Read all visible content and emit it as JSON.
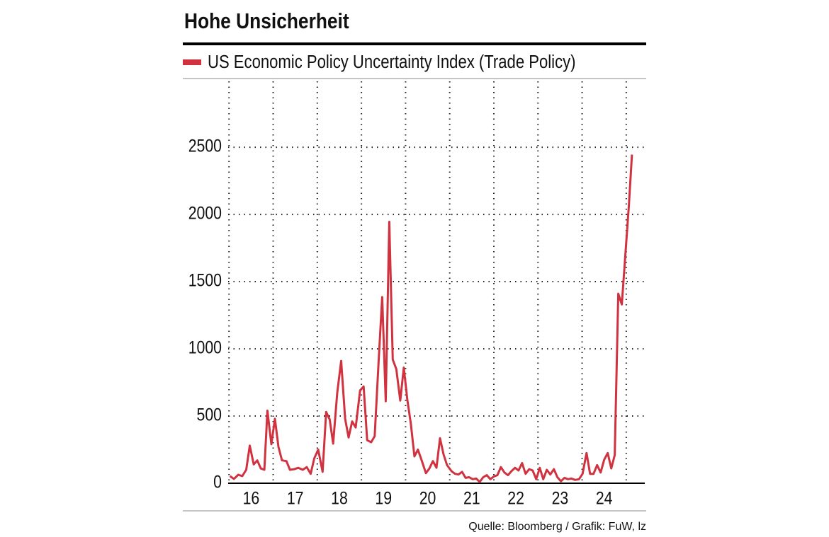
{
  "chart_data": {
    "type": "line",
    "title": "Hohe Unsicherheit",
    "source": "Quelle: Bloomberg / Grafik: FuW, lz",
    "x": [
      16.02,
      16.11,
      16.21,
      16.3,
      16.39,
      16.47,
      16.56,
      16.64,
      16.72,
      16.8,
      16.87,
      16.96,
      17.04,
      17.12,
      17.2,
      17.3,
      17.38,
      17.48,
      17.57,
      17.67,
      17.76,
      17.85,
      17.93,
      18.02,
      18.12,
      18.2,
      18.28,
      18.36,
      18.45,
      18.54,
      18.63,
      18.71,
      18.79,
      18.87,
      18.97,
      19.05,
      19.13,
      19.22,
      19.3,
      19.39,
      19.47,
      19.55,
      19.63,
      19.71,
      19.79,
      19.88,
      19.96,
      20.04,
      20.12,
      20.2,
      20.28,
      20.36,
      20.46,
      20.54,
      20.62,
      20.7,
      20.78,
      20.86,
      20.94,
      21.04,
      21.12,
      21.2,
      21.28,
      21.36,
      21.44,
      21.52,
      21.6,
      21.68,
      21.76,
      21.84,
      21.92,
      22.0,
      22.08,
      22.16,
      22.24,
      22.32,
      22.4,
      22.48,
      22.56,
      22.64,
      22.72,
      22.8,
      22.88,
      22.96,
      23.04,
      23.12,
      23.2,
      23.28,
      23.36,
      23.44,
      23.52,
      23.6,
      23.68,
      23.76,
      23.84,
      23.93,
      24.01,
      24.1,
      24.18,
      24.26,
      24.34,
      24.42,
      24.5,
      24.58,
      24.66,
      24.74,
      24.82,
      24.9,
      24.98,
      25.06,
      25.13
    ],
    "series": [
      {
        "name": "US Economic Policy Uncertainty Index (Trade Policy)",
        "color": "#d1323f",
        "values": [
          53,
          32,
          63,
          53,
          100,
          280,
          140,
          170,
          110,
          100,
          540,
          290,
          480,
          270,
          170,
          165,
          100,
          105,
          115,
          100,
          120,
          70,
          185,
          250,
          85,
          530,
          475,
          295,
          670,
          910,
          480,
          340,
          460,
          415,
          690,
          720,
          320,
          305,
          350,
          910,
          1385,
          610,
          1945,
          920,
          850,
          615,
          860,
          620,
          440,
          200,
          250,
          175,
          75,
          110,
          165,
          115,
          335,
          215,
          135,
          90,
          70,
          65,
          85,
          40,
          45,
          30,
          35,
          10,
          45,
          60,
          30,
          50,
          60,
          120,
          80,
          60,
          90,
          115,
          95,
          150,
          70,
          105,
          95,
          30,
          115,
          30,
          100,
          65,
          105,
          45,
          15,
          40,
          30,
          35,
          25,
          30,
          70,
          225,
          70,
          70,
          135,
          80,
          175,
          225,
          110,
          210,
          1410,
          1330,
          1700,
          2070,
          2445
        ]
      }
    ],
    "xlim": [
      15.98,
      25.42
    ],
    "xticks": [
      {
        "value": 16.5,
        "label": "16"
      },
      {
        "value": 17.5,
        "label": "17"
      },
      {
        "value": 18.5,
        "label": "18"
      },
      {
        "value": 19.5,
        "label": "19"
      },
      {
        "value": 20.5,
        "label": "20"
      },
      {
        "value": 21.5,
        "label": "21"
      },
      {
        "value": 22.5,
        "label": "22"
      },
      {
        "value": 23.5,
        "label": "23"
      },
      {
        "value": 24.5,
        "label": "24"
      }
    ],
    "xgrid": [
      16,
      17,
      18,
      19,
      20,
      21,
      22,
      23,
      24,
      25
    ],
    "ylim": [
      0,
      2990
    ],
    "yticks": [
      0,
      500,
      1000,
      1500,
      2000,
      2500
    ],
    "grid": true
  }
}
